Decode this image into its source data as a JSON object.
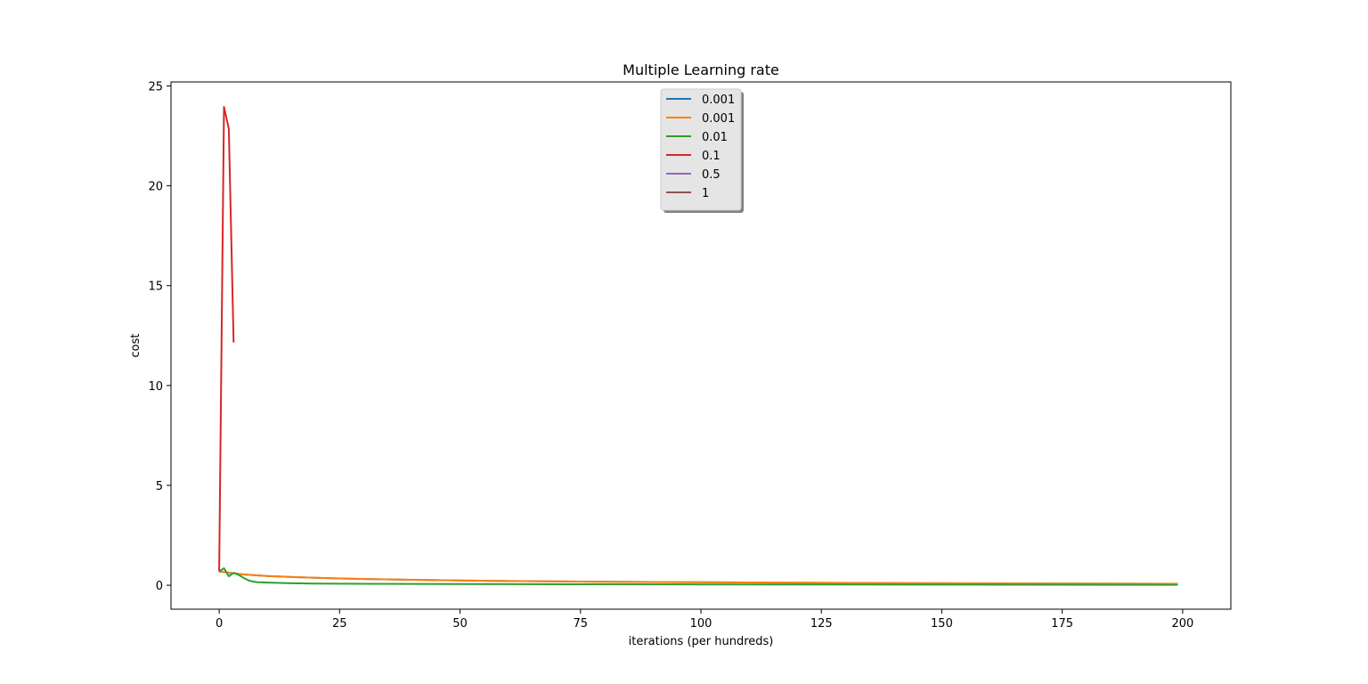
{
  "chart_data": {
    "type": "line",
    "title": "Multiple Learning rate",
    "xlabel": "iterations (per hundreds)",
    "ylabel": "cost",
    "xlim": [
      -10,
      210
    ],
    "ylim": [
      -1.2,
      25.2
    ],
    "xticks": [
      0,
      25,
      50,
      75,
      100,
      125,
      150,
      175,
      200
    ],
    "yticks": [
      0,
      5,
      10,
      15,
      20,
      25
    ],
    "grid": false,
    "legend_position": "upper center",
    "series": [
      {
        "name": "0.001",
        "color": "#1f77b4",
        "x": [
          0,
          5,
          10,
          15,
          20,
          25,
          30,
          40,
          50,
          60,
          75,
          90,
          100,
          125,
          150,
          175,
          199
        ],
        "y": [
          0.69,
          0.54,
          0.46,
          0.41,
          0.37,
          0.34,
          0.31,
          0.27,
          0.24,
          0.21,
          0.18,
          0.16,
          0.15,
          0.12,
          0.1,
          0.08,
          0.07
        ]
      },
      {
        "name": "0.001",
        "color": "#ff7f0e",
        "x": [
          0,
          5,
          10,
          15,
          20,
          25,
          30,
          40,
          50,
          60,
          75,
          90,
          100,
          125,
          150,
          175,
          199
        ],
        "y": [
          0.69,
          0.54,
          0.46,
          0.41,
          0.37,
          0.34,
          0.31,
          0.27,
          0.24,
          0.21,
          0.18,
          0.16,
          0.15,
          0.12,
          0.1,
          0.08,
          0.07
        ]
      },
      {
        "name": "0.01",
        "color": "#2ca02c",
        "x": [
          0,
          1,
          2,
          3,
          4,
          5,
          6,
          7,
          8,
          10,
          15,
          20,
          30,
          50,
          75,
          100,
          150,
          199
        ],
        "y": [
          0.69,
          0.85,
          0.45,
          0.62,
          0.52,
          0.38,
          0.25,
          0.18,
          0.15,
          0.13,
          0.1,
          0.08,
          0.07,
          0.06,
          0.05,
          0.04,
          0.03,
          0.02
        ]
      },
      {
        "name": "0.1",
        "color": "#d62728",
        "x": [
          0,
          1,
          2,
          3
        ],
        "y": [
          0.69,
          23.95,
          22.85,
          12.15
        ]
      },
      {
        "name": "0.5",
        "color": "#9467bd",
        "x": [],
        "y": []
      },
      {
        "name": "1",
        "color": "#8c564b",
        "x": [],
        "y": []
      }
    ]
  }
}
